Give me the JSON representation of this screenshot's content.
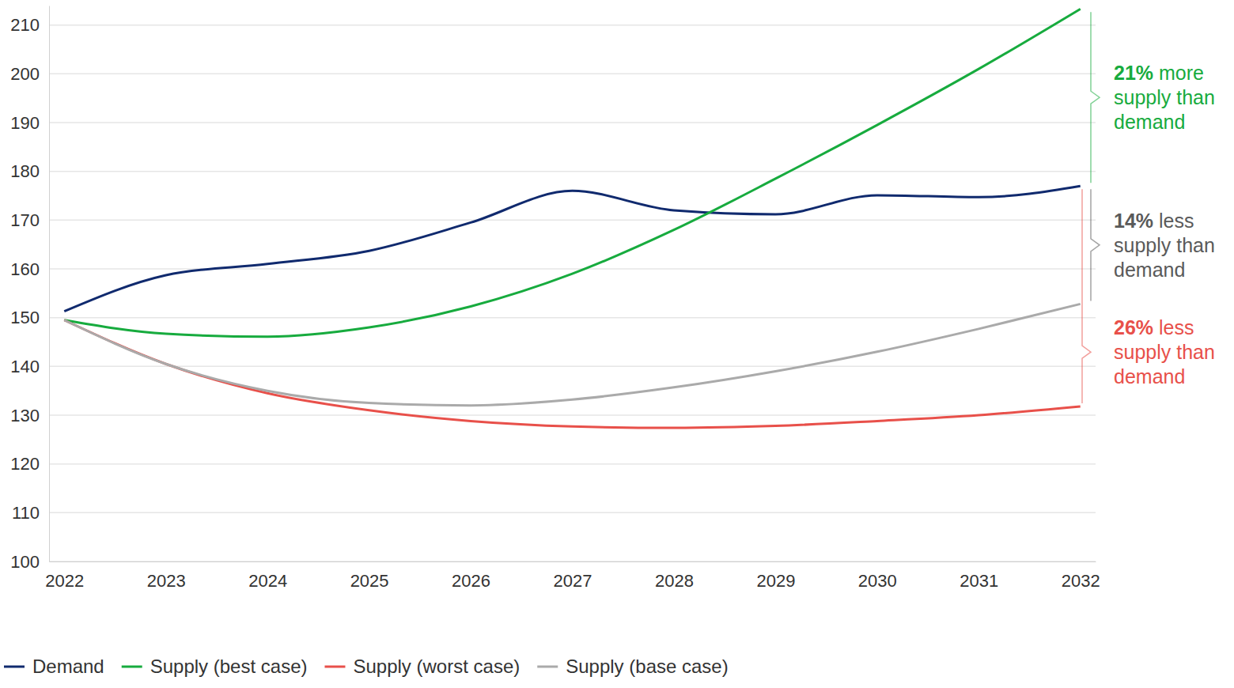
{
  "chart_data": {
    "type": "line",
    "x": [
      2022,
      2023,
      2024,
      2025,
      2026,
      2027,
      2028,
      2029,
      2030,
      2031,
      2032
    ],
    "xlim": [
      2021.85,
      2032.15
    ],
    "xticks": [
      2022,
      2023,
      2024,
      2025,
      2026,
      2027,
      2028,
      2029,
      2030,
      2031,
      2032
    ],
    "ylim": [
      100,
      214
    ],
    "yticks": [
      100,
      110,
      120,
      130,
      140,
      150,
      160,
      170,
      180,
      190,
      200,
      210
    ],
    "grid": true,
    "legend": "bottom",
    "series": [
      {
        "name": "Demand",
        "color": "#102a6e",
        "values": [
          151.3,
          158.7,
          161,
          163.7,
          169.5,
          176,
          172,
          171.2,
          175.1,
          174.7,
          177
        ]
      },
      {
        "name": "Supply (best case)",
        "color": "#17ab3e",
        "values": [
          149.5,
          146.7,
          146.1,
          148,
          152.3,
          159,
          168,
          178.5,
          189.5,
          201,
          213.3
        ]
      },
      {
        "name": "Supply (worst case)",
        "color": "#e8504a",
        "values": [
          149.5,
          140.5,
          134.5,
          131,
          128.8,
          127.7,
          127.4,
          127.8,
          128.8,
          130,
          131.8
        ]
      },
      {
        "name": "Supply (base case)",
        "color": "#aaaaaa",
        "values": [
          149.5,
          140.5,
          135,
          132.5,
          132,
          133.2,
          135.7,
          139,
          143,
          147.7,
          152.8
        ]
      }
    ],
    "annotations": [
      {
        "series": "Supply (best case)",
        "value": "21%",
        "lines": [
          "more",
          "supply than",
          "demand"
        ],
        "color": "#17ab3e"
      },
      {
        "series": "Supply (base case)",
        "value": "14%",
        "lines": [
          "less",
          "supply than",
          "demand"
        ],
        "color": "#5a5a5a"
      },
      {
        "series": "Supply (worst case)",
        "value": "26%",
        "lines": [
          "less",
          "supply than",
          "demand"
        ],
        "color": "#e8504a"
      }
    ]
  }
}
